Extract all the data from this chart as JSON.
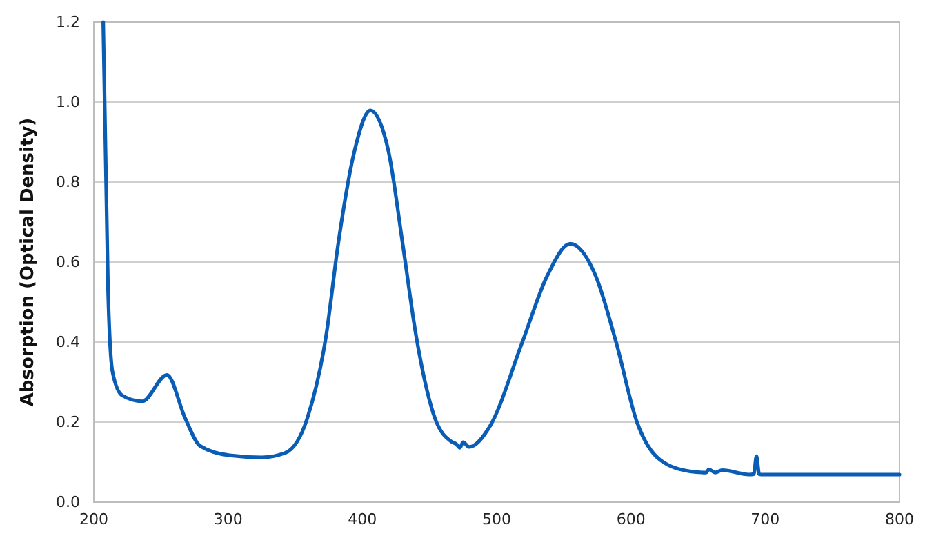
{
  "chart_data": {
    "type": "line",
    "ylabel": "Absorption (Optical Density)",
    "xlim": [
      200,
      800
    ],
    "xticks": [
      200,
      300,
      400,
      500,
      600,
      700,
      800
    ],
    "ylim": [
      0,
      1.2
    ],
    "yticks": [
      {
        "value": 0,
        "label": "0.0"
      },
      {
        "value": 0.2,
        "label": "0.2"
      },
      {
        "value": 0.4,
        "label": "0.4"
      },
      {
        "value": 0.6,
        "label": "0.6"
      },
      {
        "value": 0.8,
        "label": "0.8"
      },
      {
        "value": 1,
        "label": "1.0"
      },
      {
        "value": 1.2,
        "label": "1.2"
      }
    ],
    "grid": "y",
    "marker": "none",
    "line_style": "solid",
    "series": [
      {
        "color": "#0a5db5",
        "x": [
          207,
          210.6,
          214,
          221,
          236,
          254.5,
          268,
          279,
          301,
          325,
          342.5,
          359,
          373,
          382,
          394,
          406,
          419.5,
          430,
          440,
          454,
          466,
          470,
          472.6,
          475,
          479.5,
          495,
          519,
          537.7,
          554.8,
          573.7,
          589,
          604.5,
          621.6,
          644,
          656,
          658,
          662.7,
          668,
          688,
          691.5,
          693.5,
          695.5,
          697,
          800
        ],
        "values": [
          1.2,
          0.53,
          0.324,
          0.267,
          0.252,
          0.318,
          0.21,
          0.141,
          0.117,
          0.112,
          0.123,
          0.21,
          0.416,
          0.646,
          0.876,
          0.979,
          0.876,
          0.646,
          0.416,
          0.21,
          0.152,
          0.145,
          0.136,
          0.15,
          0.138,
          0.19,
          0.399,
          0.566,
          0.646,
          0.566,
          0.399,
          0.2,
          0.106,
          0.077,
          0.074,
          0.082,
          0.074,
          0.08,
          0.069,
          0.07,
          0.115,
          0.07,
          0.069,
          0.069
        ]
      }
    ]
  }
}
